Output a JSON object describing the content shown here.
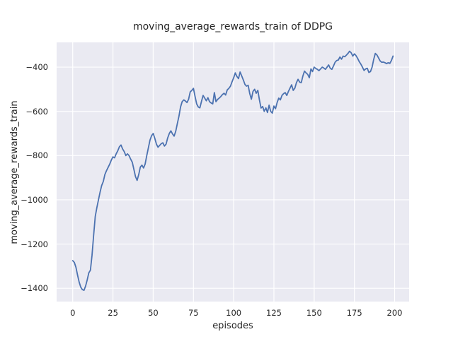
{
  "chart_data": {
    "type": "line",
    "title": "moving_average_rewards_train of DDPG",
    "xlabel": "episodes",
    "ylabel": "moving_average_rewards_train",
    "x_ticks": [
      0,
      25,
      50,
      75,
      100,
      125,
      150,
      175,
      200
    ],
    "x_tick_labels": [
      "0",
      "25",
      "50",
      "75",
      "100",
      "125",
      "150",
      "175",
      "200"
    ],
    "y_ticks": [
      -400,
      -600,
      -800,
      -1000,
      -1200,
      -1400
    ],
    "y_tick_labels": [
      "−400",
      "−600",
      "−800",
      "−1000",
      "−1200",
      "−1400"
    ],
    "xlim": [
      -10,
      209
    ],
    "ylim": [
      -1460,
      -288
    ],
    "grid": true,
    "legend": "none",
    "plot_bg": "#eaeaf2",
    "grid_color": "#ffffff",
    "line_color": "#4c72b0",
    "text_color": "#262626",
    "series": [
      {
        "name": "moving_average_rewards_train",
        "x_start": 0,
        "x_step": 1,
        "y": [
          -1275,
          -1283,
          -1305,
          -1340,
          -1372,
          -1395,
          -1406,
          -1409,
          -1390,
          -1362,
          -1330,
          -1318,
          -1250,
          -1160,
          -1075,
          -1035,
          -1000,
          -965,
          -935,
          -917,
          -885,
          -868,
          -853,
          -838,
          -820,
          -806,
          -810,
          -792,
          -778,
          -760,
          -752,
          -770,
          -782,
          -800,
          -792,
          -800,
          -816,
          -830,
          -862,
          -895,
          -912,
          -886,
          -852,
          -843,
          -856,
          -838,
          -800,
          -765,
          -730,
          -710,
          -700,
          -722,
          -748,
          -762,
          -754,
          -746,
          -742,
          -757,
          -748,
          -720,
          -700,
          -688,
          -702,
          -712,
          -690,
          -655,
          -622,
          -580,
          -556,
          -548,
          -553,
          -560,
          -545,
          -512,
          -505,
          -496,
          -532,
          -566,
          -580,
          -584,
          -555,
          -528,
          -540,
          -552,
          -538,
          -556,
          -562,
          -566,
          -515,
          -556,
          -546,
          -540,
          -533,
          -524,
          -518,
          -526,
          -503,
          -496,
          -486,
          -466,
          -448,
          -426,
          -442,
          -452,
          -422,
          -440,
          -458,
          -478,
          -486,
          -482,
          -520,
          -545,
          -510,
          -500,
          -518,
          -505,
          -548,
          -585,
          -578,
          -600,
          -584,
          -605,
          -572,
          -600,
          -608,
          -576,
          -588,
          -560,
          -540,
          -548,
          -528,
          -520,
          -515,
          -528,
          -510,
          -495,
          -480,
          -505,
          -495,
          -470,
          -455,
          -468,
          -470,
          -440,
          -418,
          -426,
          -433,
          -448,
          -408,
          -420,
          -400,
          -406,
          -410,
          -416,
          -408,
          -400,
          -404,
          -410,
          -400,
          -390,
          -405,
          -410,
          -395,
          -378,
          -370,
          -368,
          -354,
          -364,
          -350,
          -353,
          -346,
          -338,
          -328,
          -335,
          -350,
          -340,
          -348,
          -360,
          -375,
          -386,
          -400,
          -415,
          -408,
          -405,
          -424,
          -420,
          -400,
          -365,
          -338,
          -345,
          -358,
          -372,
          -378,
          -377,
          -380,
          -384,
          -380,
          -383,
          -370,
          -350
        ]
      }
    ]
  }
}
